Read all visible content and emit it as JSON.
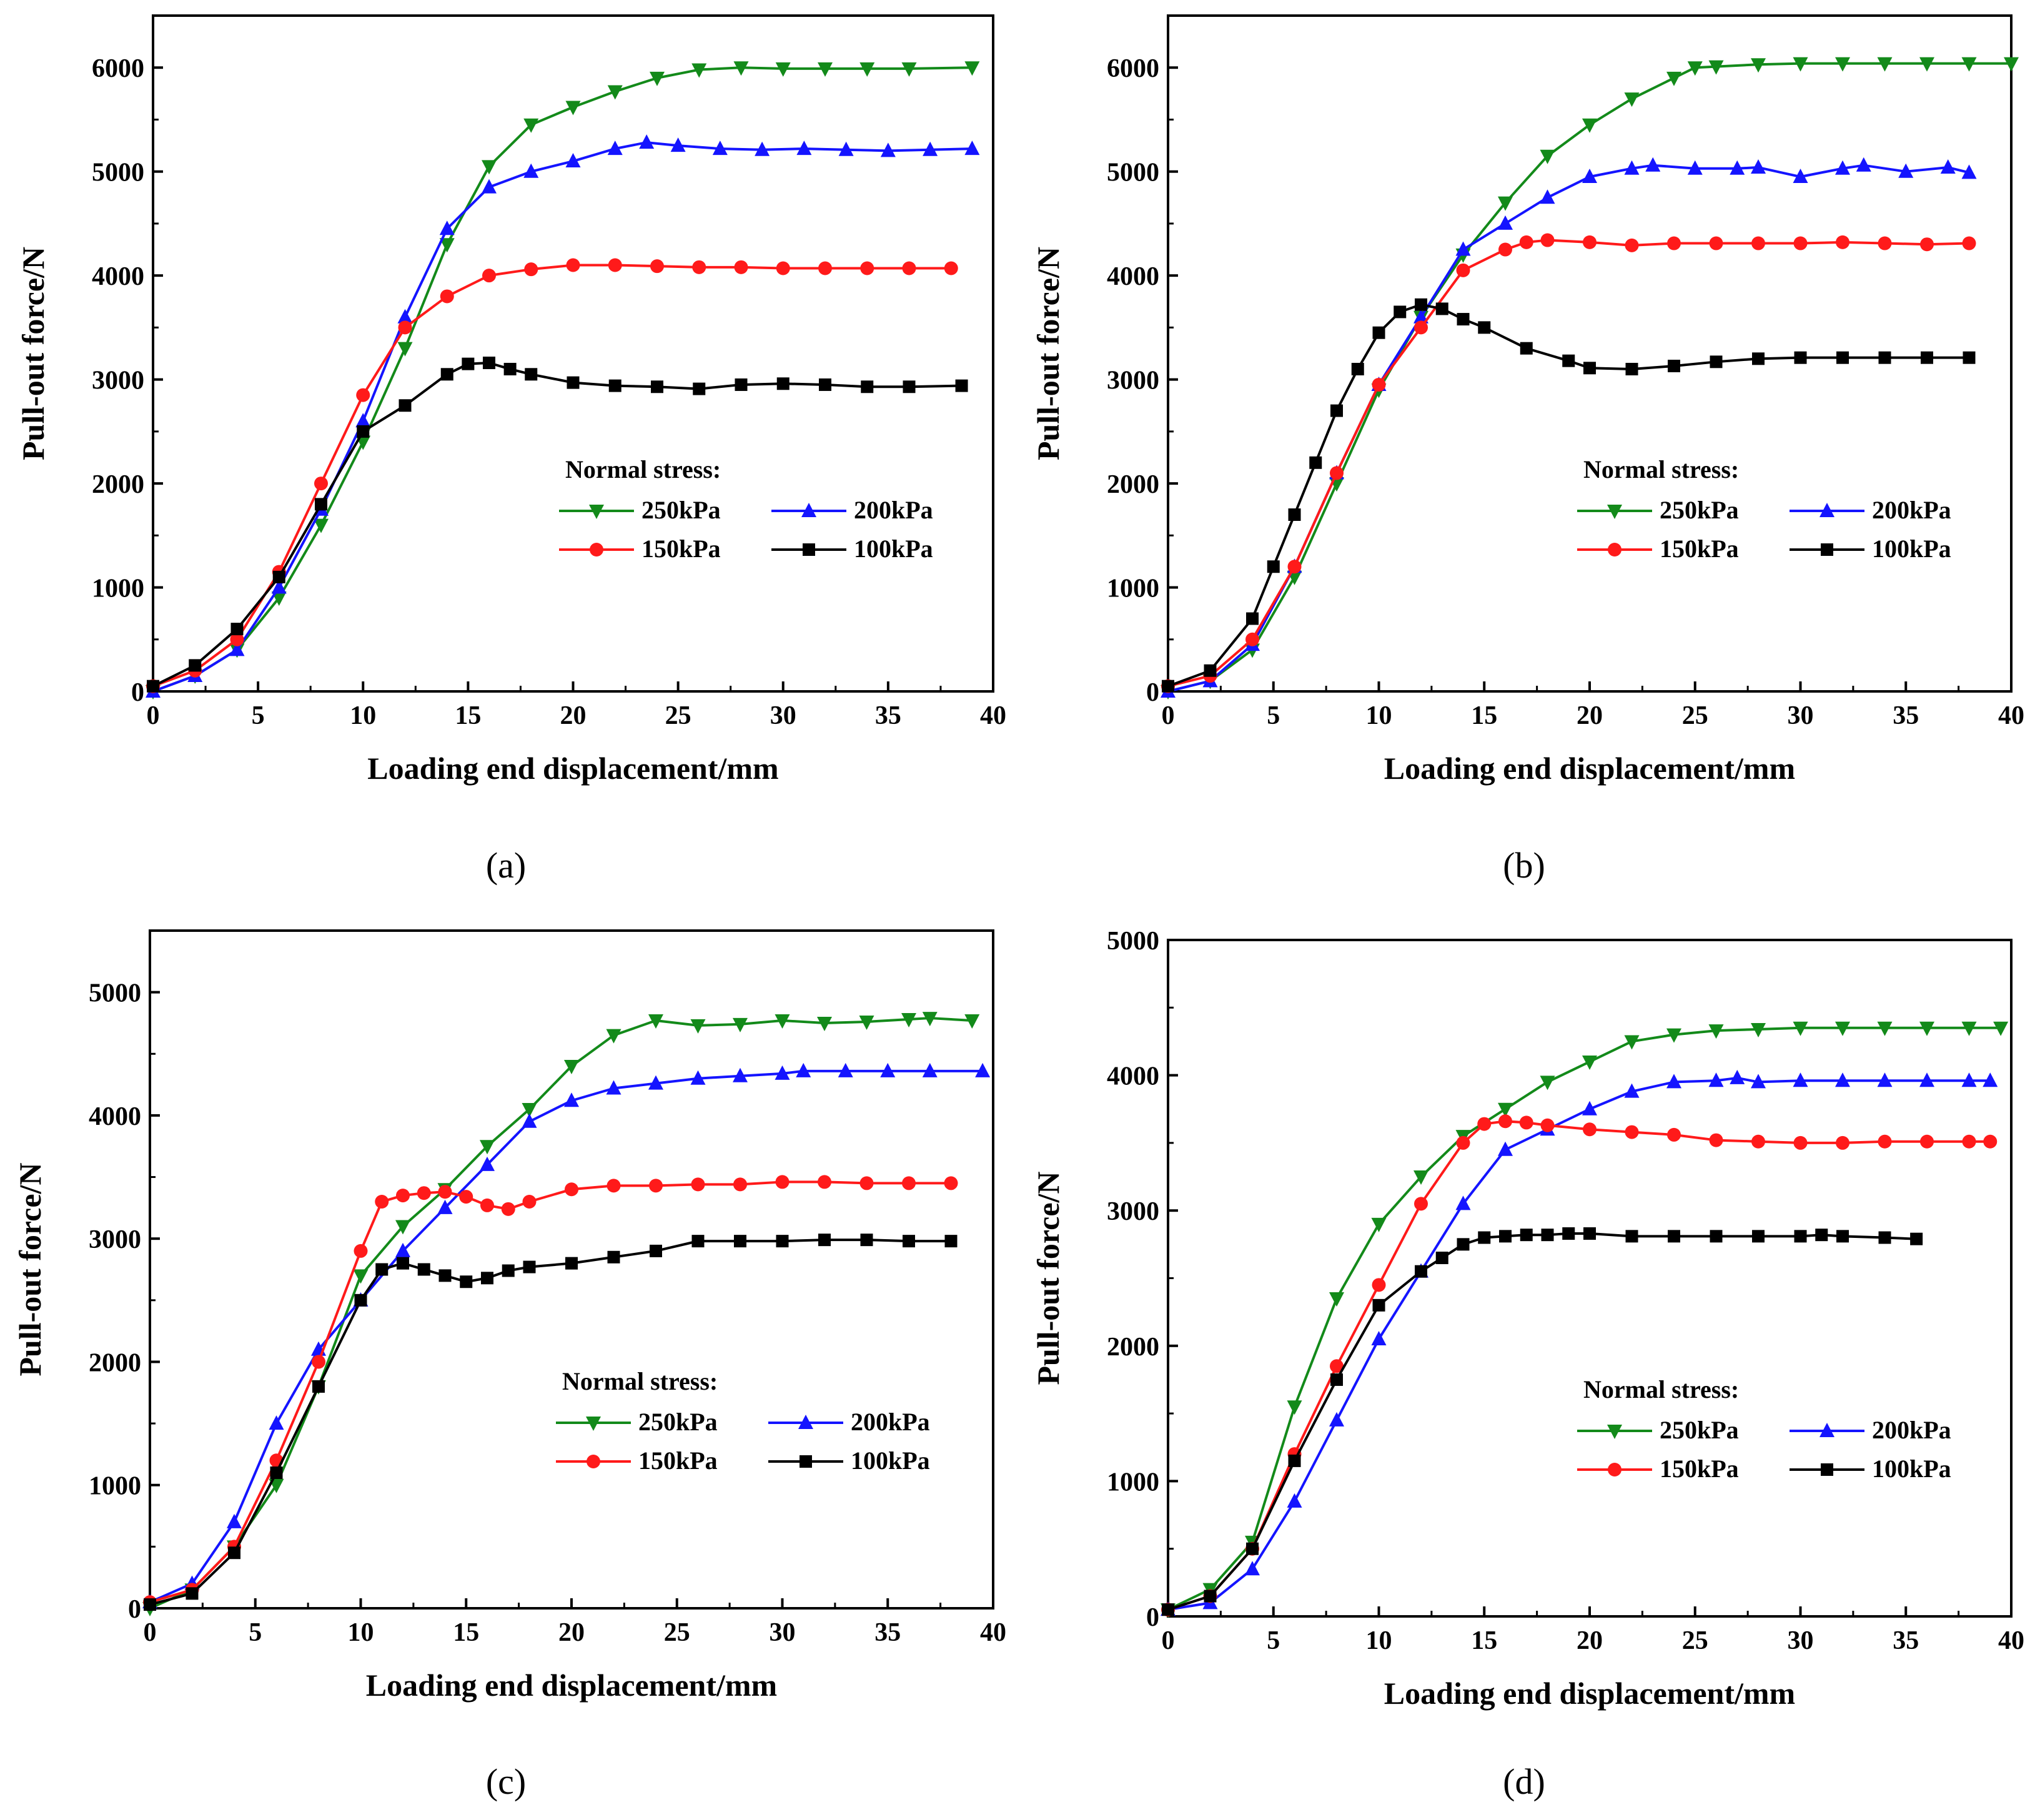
{
  "colors": {
    "250kPa": "#138a1a",
    "200kPa": "#1414ff",
    "150kPa": "#ff1a1a",
    "100kPa": "#000000"
  },
  "chart_data": [
    {
      "type": "line",
      "caption": "(a)",
      "xlabel": "Loading end displacement/mm",
      "ylabel": "Pull-out force/N",
      "xlim": [
        0,
        40
      ],
      "ylim": [
        0,
        6500
      ],
      "xticks": [
        0,
        5,
        10,
        15,
        20,
        25,
        30,
        35,
        40
      ],
      "yticks": [
        0,
        1000,
        2000,
        3000,
        4000,
        5000,
        6000
      ],
      "legend_title": "Normal stress:",
      "series": [
        {
          "name": "250kPa",
          "marker": "tri-down",
          "x": [
            0,
            2,
            4,
            6,
            8,
            10,
            12,
            14,
            16,
            18,
            20,
            22,
            24,
            26,
            28,
            30,
            32,
            34,
            36,
            39
          ],
          "y": [
            0,
            150,
            400,
            900,
            1600,
            2400,
            3300,
            4300,
            5050,
            5450,
            5620,
            5770,
            5900,
            5980,
            6000,
            5990,
            5990,
            5990,
            5990,
            6000
          ]
        },
        {
          "name": "200kPa",
          "marker": "tri-up",
          "x": [
            0,
            2,
            4,
            6,
            8,
            10,
            12,
            14,
            16,
            18,
            20,
            22,
            23.5,
            25,
            27,
            29,
            31,
            33,
            35,
            37,
            39
          ],
          "y": [
            0,
            150,
            400,
            1000,
            1750,
            2600,
            3600,
            4450,
            4850,
            5000,
            5100,
            5220,
            5280,
            5250,
            5220,
            5210,
            5220,
            5210,
            5200,
            5210,
            5220
          ]
        },
        {
          "name": "150kPa",
          "marker": "circle",
          "x": [
            0,
            2,
            4,
            6,
            8,
            10,
            12,
            14,
            16,
            18,
            20,
            22,
            24,
            26,
            28,
            30,
            32,
            34,
            36,
            38
          ],
          "y": [
            50,
            200,
            500,
            1150,
            2000,
            2850,
            3500,
            3800,
            4000,
            4060,
            4100,
            4100,
            4090,
            4080,
            4080,
            4070,
            4070,
            4070,
            4070,
            4070
          ]
        },
        {
          "name": "100kPa",
          "marker": "square",
          "x": [
            0,
            2,
            4,
            6,
            8,
            10,
            12,
            14,
            15,
            16,
            17,
            18,
            20,
            22,
            24,
            26,
            28,
            30,
            32,
            34,
            36,
            38.5
          ],
          "y": [
            50,
            250,
            600,
            1100,
            1800,
            2500,
            2750,
            3050,
            3150,
            3160,
            3100,
            3050,
            2970,
            2940,
            2930,
            2910,
            2950,
            2960,
            2950,
            2930,
            2930,
            2940
          ]
        }
      ]
    },
    {
      "type": "line",
      "caption": "(b)",
      "xlabel": "Loading end displacement/mm",
      "ylabel": "Pull-out force/N",
      "xlim": [
        0,
        40
      ],
      "ylim": [
        0,
        6500
      ],
      "xticks": [
        0,
        5,
        10,
        15,
        20,
        25,
        30,
        35,
        40
      ],
      "yticks": [
        0,
        1000,
        2000,
        3000,
        4000,
        5000,
        6000
      ],
      "legend_title": "Normal stress:",
      "series": [
        {
          "name": "250kPa",
          "marker": "tri-down",
          "x": [
            0,
            2,
            4,
            6,
            8,
            10,
            12,
            14,
            16,
            18,
            20,
            22,
            24,
            25,
            26,
            28,
            30,
            32,
            34,
            36,
            38,
            40
          ],
          "y": [
            0,
            100,
            400,
            1100,
            2000,
            2900,
            3600,
            4200,
            4700,
            5150,
            5450,
            5700,
            5900,
            6000,
            6010,
            6030,
            6040,
            6040,
            6040,
            6040,
            6040,
            6040
          ]
        },
        {
          "name": "200kPa",
          "marker": "tri-up",
          "x": [
            0,
            2,
            4,
            6,
            8,
            10,
            12,
            14,
            16,
            18,
            20,
            22,
            23,
            25,
            27,
            28,
            30,
            32,
            33,
            35,
            37,
            38
          ],
          "y": [
            0,
            100,
            450,
            1200,
            2100,
            2950,
            3600,
            4250,
            4500,
            4750,
            4950,
            5030,
            5060,
            5030,
            5030,
            5040,
            4950,
            5030,
            5060,
            5000,
            5040,
            4990
          ]
        },
        {
          "name": "150kPa",
          "marker": "circle",
          "x": [
            0,
            2,
            4,
            6,
            8,
            10,
            12,
            14,
            16,
            17,
            18,
            20,
            22,
            24,
            26,
            28,
            30,
            32,
            34,
            36,
            38
          ],
          "y": [
            50,
            150,
            500,
            1200,
            2100,
            2950,
            3500,
            4050,
            4250,
            4320,
            4340,
            4320,
            4290,
            4310,
            4310,
            4310,
            4310,
            4320,
            4310,
            4300,
            4310
          ]
        },
        {
          "name": "100kPa",
          "marker": "square",
          "x": [
            0,
            2,
            4,
            5,
            6,
            7,
            8,
            9,
            10,
            11,
            12,
            13,
            14,
            15,
            17,
            19,
            20,
            22,
            24,
            26,
            28,
            30,
            32,
            34,
            36,
            38
          ],
          "y": [
            50,
            200,
            700,
            1200,
            1700,
            2200,
            2700,
            3100,
            3450,
            3650,
            3720,
            3680,
            3580,
            3500,
            3300,
            3180,
            3110,
            3100,
            3130,
            3170,
            3200,
            3210,
            3210,
            3210,
            3210,
            3210
          ]
        }
      ]
    },
    {
      "type": "line",
      "caption": "(c)",
      "xlabel": "Loading end displacement/mm",
      "ylabel": "Pull-out force/N",
      "xlim": [
        0,
        40
      ],
      "ylim": [
        0,
        5500
      ],
      "xticks": [
        0,
        5,
        10,
        15,
        20,
        25,
        30,
        35,
        40
      ],
      "yticks": [
        0,
        1000,
        2000,
        3000,
        4000,
        5000
      ],
      "legend_title": "Normal stress:",
      "series": [
        {
          "name": "250kPa",
          "marker": "tri-down",
          "x": [
            0,
            2,
            4,
            6,
            8,
            10,
            12,
            14,
            16,
            18,
            20,
            22,
            24,
            26,
            28,
            30,
            32,
            34,
            36,
            37,
            39
          ],
          "y": [
            0,
            150,
            500,
            1000,
            1800,
            2700,
            3100,
            3400,
            3750,
            4050,
            4400,
            4650,
            4770,
            4730,
            4740,
            4770,
            4750,
            4760,
            4780,
            4790,
            4770
          ]
        },
        {
          "name": "200kPa",
          "marker": "tri-up",
          "x": [
            0,
            2,
            4,
            6,
            8,
            10,
            12,
            14,
            16,
            18,
            20,
            22,
            24,
            26,
            28,
            30,
            31,
            33,
            35,
            37,
            39.5
          ],
          "y": [
            50,
            200,
            700,
            1500,
            2100,
            2500,
            2900,
            3250,
            3600,
            3950,
            4120,
            4220,
            4260,
            4300,
            4320,
            4340,
            4360,
            4360,
            4360,
            4360,
            4360
          ]
        },
        {
          "name": "150kPa",
          "marker": "circle",
          "x": [
            0,
            2,
            4,
            6,
            8,
            10,
            11,
            12,
            13,
            14,
            15,
            16,
            17,
            18,
            20,
            22,
            24,
            26,
            28,
            30,
            32,
            34,
            36,
            38
          ],
          "y": [
            50,
            150,
            500,
            1200,
            2000,
            2900,
            3300,
            3350,
            3370,
            3380,
            3340,
            3270,
            3240,
            3300,
            3400,
            3430,
            3430,
            3440,
            3440,
            3460,
            3460,
            3450,
            3450,
            3450
          ]
        },
        {
          "name": "100kPa",
          "marker": "square",
          "x": [
            0,
            2,
            4,
            6,
            8,
            10,
            11,
            12,
            13,
            14,
            15,
            16,
            17,
            18,
            20,
            22,
            24,
            26,
            28,
            30,
            32,
            34,
            36,
            38
          ],
          "y": [
            30,
            120,
            450,
            1100,
            1800,
            2500,
            2750,
            2800,
            2750,
            2700,
            2650,
            2680,
            2740,
            2770,
            2800,
            2850,
            2900,
            2980,
            2980,
            2980,
            2990,
            2990,
            2980,
            2980
          ]
        }
      ]
    },
    {
      "type": "line",
      "caption": "(d)",
      "xlabel": "Loading end displacement/mm",
      "ylabel": "Pull-out force/N",
      "xlim": [
        0,
        40
      ],
      "ylim": [
        0,
        5000
      ],
      "xticks": [
        0,
        5,
        10,
        15,
        20,
        25,
        30,
        35,
        40
      ],
      "yticks": [
        0,
        1000,
        2000,
        3000,
        4000,
        5000
      ],
      "legend_title": "Normal stress:",
      "series": [
        {
          "name": "250kPa",
          "marker": "tri-down",
          "x": [
            0,
            2,
            4,
            6,
            8,
            10,
            12,
            14,
            16,
            18,
            20,
            22,
            24,
            26,
            28,
            30,
            32,
            34,
            36,
            38,
            39.5
          ],
          "y": [
            50,
            200,
            550,
            1550,
            2350,
            2900,
            3250,
            3550,
            3750,
            3950,
            4100,
            4250,
            4300,
            4330,
            4340,
            4350,
            4350,
            4350,
            4350,
            4350,
            4350
          ]
        },
        {
          "name": "200kPa",
          "marker": "tri-up",
          "x": [
            0,
            2,
            4,
            6,
            8,
            10,
            12,
            14,
            16,
            18,
            20,
            22,
            24,
            26,
            27,
            28,
            30,
            32,
            34,
            36,
            38,
            39
          ],
          "y": [
            50,
            100,
            350,
            850,
            1450,
            2050,
            2550,
            3050,
            3450,
            3600,
            3750,
            3880,
            3950,
            3960,
            3980,
            3950,
            3960,
            3960,
            3960,
            3960,
            3960,
            3960
          ]
        },
        {
          "name": "150kPa",
          "marker": "circle",
          "x": [
            0,
            2,
            4,
            6,
            8,
            10,
            12,
            14,
            15,
            16,
            17,
            18,
            20,
            22,
            24,
            26,
            28,
            30,
            32,
            34,
            36,
            38,
            39
          ],
          "y": [
            50,
            150,
            500,
            1200,
            1850,
            2450,
            3050,
            3500,
            3640,
            3660,
            3650,
            3630,
            3600,
            3580,
            3560,
            3520,
            3510,
            3500,
            3500,
            3510,
            3510,
            3510,
            3510
          ]
        },
        {
          "name": "100kPa",
          "marker": "square",
          "x": [
            0,
            2,
            4,
            6,
            8,
            10,
            12,
            13,
            14,
            15,
            16,
            17,
            18,
            19,
            20,
            22,
            24,
            26,
            28,
            30,
            31,
            32,
            34,
            35.5
          ],
          "y": [
            50,
            150,
            500,
            1150,
            1750,
            2300,
            2550,
            2650,
            2750,
            2800,
            2810,
            2820,
            2820,
            2830,
            2830,
            2810,
            2810,
            2810,
            2810,
            2810,
            2820,
            2810,
            2800,
            2790
          ]
        }
      ]
    }
  ]
}
